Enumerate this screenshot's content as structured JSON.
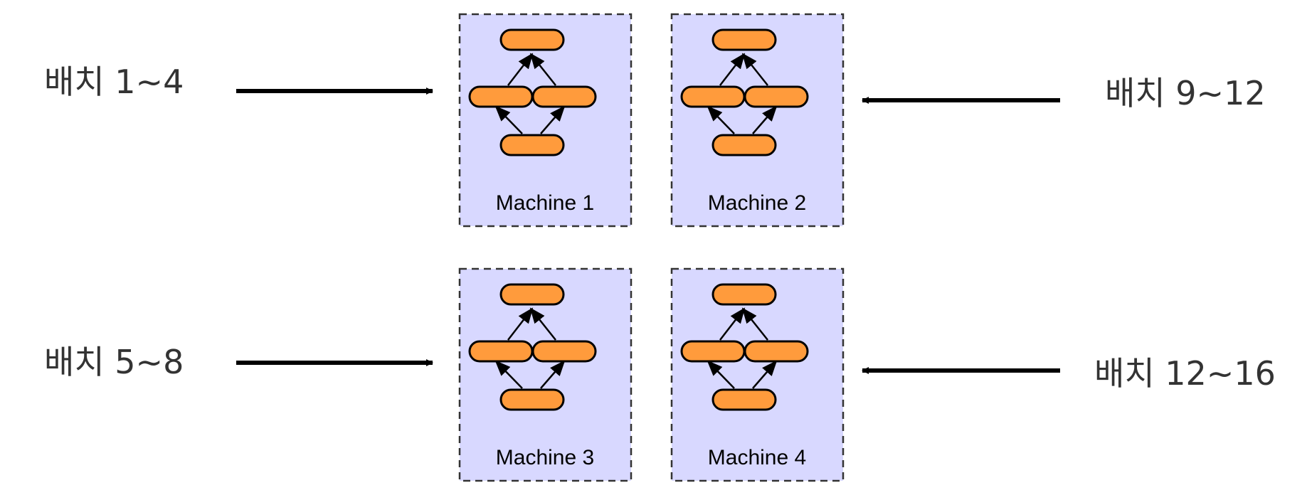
{
  "batches": [
    {
      "label": "배치 1~4",
      "target": "Machine 1"
    },
    {
      "label": "배치 5~8",
      "target": "Machine 3"
    },
    {
      "label": "배치 9~12",
      "target": "Machine 2"
    },
    {
      "label": "배치 12~16",
      "target": "Machine 4"
    }
  ],
  "machines": [
    {
      "label": "Machine 1"
    },
    {
      "label": "Machine 2"
    },
    {
      "label": "Machine 3"
    },
    {
      "label": "Machine 4"
    }
  ],
  "colors": {
    "machine_fill": "#d8d8ff",
    "node_fill": "#ff9b3c",
    "arrow": "#000000",
    "text": "#333333"
  }
}
